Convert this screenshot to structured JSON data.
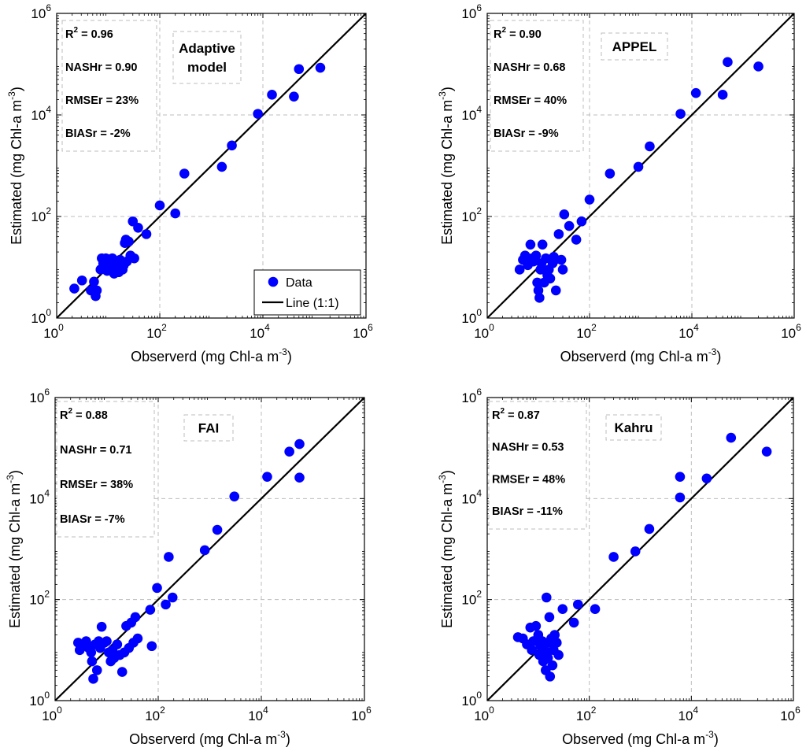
{
  "chart_data": [
    {
      "type": "scatter",
      "title": "Adaptive model",
      "title_lines": [
        "Adaptive",
        "model"
      ],
      "xlabel": "Observerd (mg Chl-a m",
      "ylabel": "Estimated (mg Chl-a m",
      "unit_exponent": "-3",
      "unit_close": ")",
      "axis_scale": "log",
      "xlim": [
        1,
        1000000
      ],
      "ylim": [
        1,
        1000000
      ],
      "tick_base": "10",
      "tick_exponents": [
        "0",
        "2",
        "4",
        "6"
      ],
      "grid": "dashed",
      "stats": [
        {
          "label": "R",
          "sup": "2",
          "value": " = 0.96"
        },
        {
          "label": "NASHr = 0.90"
        },
        {
          "label": "RMSEr = 23%"
        },
        {
          "label": "BIASr = -2%"
        }
      ],
      "legend": {
        "position": "bottom-right",
        "entries": [
          "Data",
          "Line (1:1)"
        ]
      },
      "series": [
        {
          "name": "Data",
          "color": "#0000ff",
          "points": [
            [
              2.2,
              3.8
            ],
            [
              3.1,
              5.5
            ],
            [
              4.6,
              3.5
            ],
            [
              5.3,
              5.2
            ],
            [
              5.7,
              2.7
            ],
            [
              6.0,
              3.5
            ],
            [
              7.1,
              9.0
            ],
            [
              7.5,
              15
            ],
            [
              8.0,
              12
            ],
            [
              8.5,
              11
            ],
            [
              9.0,
              15
            ],
            [
              9.5,
              8.5
            ],
            [
              10,
              14
            ],
            [
              10.5,
              10
            ],
            [
              11,
              12
            ],
            [
              12,
              15
            ],
            [
              13,
              7.5
            ],
            [
              14,
              10
            ],
            [
              15,
              12
            ],
            [
              16,
              8
            ],
            [
              17,
              14
            ],
            [
              18,
              12
            ],
            [
              19,
              9
            ],
            [
              20,
              11
            ],
            [
              21,
              30
            ],
            [
              22,
              35
            ],
            [
              23,
              13
            ],
            [
              25,
              32
            ],
            [
              27,
              17
            ],
            [
              30,
              80
            ],
            [
              32,
              15
            ],
            [
              38,
              60
            ],
            [
              55,
              45
            ],
            [
              100,
              165
            ],
            [
              200,
              115
            ],
            [
              300,
              700
            ],
            [
              1600,
              950
            ],
            [
              2500,
              2500
            ],
            [
              8000,
              10500
            ],
            [
              15000,
              25000
            ],
            [
              40000,
              23000
            ],
            [
              50000,
              80000
            ],
            [
              130000,
              85000
            ]
          ]
        },
        {
          "name": "Line (1:1)",
          "color": "#000000",
          "line": [
            [
              1,
              1
            ],
            [
              1000000,
              1000000
            ]
          ]
        }
      ]
    },
    {
      "type": "scatter",
      "title": "APPEL",
      "title_lines": [
        "APPEL"
      ],
      "xlabel": "Observerd (mg Chl-a m",
      "ylabel": "Estimated (mg Chl-a m",
      "unit_exponent": "-3",
      "unit_close": ")",
      "axis_scale": "log",
      "xlim": [
        1,
        1000000
      ],
      "ylim": [
        1,
        1000000
      ],
      "tick_base": "10",
      "tick_exponents": [
        "0",
        "2",
        "4",
        "6"
      ],
      "grid": "dashed",
      "stats": [
        {
          "label": "R",
          "sup": "2",
          "value": " = 0.90"
        },
        {
          "label": "NASHr = 0.68"
        },
        {
          "label": "RMSEr = 40%"
        },
        {
          "label": "BIASr = -9%"
        }
      ],
      "series": [
        {
          "name": "Data",
          "color": "#0000ff",
          "points": [
            [
              4.3,
              9
            ],
            [
              5,
              14
            ],
            [
              5.5,
              17
            ],
            [
              6.2,
              11
            ],
            [
              7,
              28
            ],
            [
              7.5,
              15
            ],
            [
              8,
              13
            ],
            [
              9,
              17
            ],
            [
              9.5,
              5
            ],
            [
              10,
              3.5
            ],
            [
              10.5,
              2.5
            ],
            [
              11,
              9
            ],
            [
              11.5,
              12
            ],
            [
              12,
              28
            ],
            [
              13,
              5
            ],
            [
              14,
              15
            ],
            [
              15,
              7
            ],
            [
              16,
              9
            ],
            [
              17,
              6
            ],
            [
              19,
              12
            ],
            [
              20,
              16
            ],
            [
              21,
              14
            ],
            [
              22,
              3.5
            ],
            [
              25,
              45
            ],
            [
              28,
              14
            ],
            [
              30,
              9
            ],
            [
              32,
              110
            ],
            [
              40,
              65
            ],
            [
              55,
              35
            ],
            [
              70,
              80
            ],
            [
              100,
              215
            ],
            [
              250,
              700
            ],
            [
              900,
              950
            ],
            [
              1500,
              2400
            ],
            [
              6000,
              10500
            ],
            [
              12000,
              27000
            ],
            [
              40000,
              25000
            ],
            [
              50000,
              110000
            ],
            [
              200000,
              90000
            ]
          ]
        },
        {
          "name": "Line (1:1)",
          "color": "#000000",
          "line": [
            [
              1,
              1
            ],
            [
              1000000,
              1000000
            ]
          ]
        }
      ]
    },
    {
      "type": "scatter",
      "title": "FAI",
      "title_lines": [
        "FAI"
      ],
      "xlabel": "Observerd (mg Chl-a m",
      "ylabel": "Estimated (mg Chl-a m",
      "unit_exponent": "-3",
      "unit_close": ")",
      "axis_scale": "log",
      "xlim": [
        1,
        1000000
      ],
      "ylim": [
        1,
        1000000
      ],
      "tick_base": "10",
      "tick_exponents": [
        "0",
        "2",
        "4",
        "6"
      ],
      "grid": "dashed",
      "stats": [
        {
          "label": "R",
          "sup": "2",
          "value": " = 0.88"
        },
        {
          "label": "NASHr = 0.71"
        },
        {
          "label": "RMSEr = 38%"
        },
        {
          "label": "BIASr = -7%"
        }
      ],
      "series": [
        {
          "name": "Data",
          "color": "#0000ff",
          "points": [
            [
              2.8,
              14
            ],
            [
              3,
              10
            ],
            [
              3.5,
              12
            ],
            [
              4,
              15
            ],
            [
              4.5,
              11
            ],
            [
              5,
              9
            ],
            [
              5.2,
              6
            ],
            [
              5.5,
              2.7
            ],
            [
              6,
              13
            ],
            [
              6.5,
              4
            ],
            [
              7,
              15
            ],
            [
              7.5,
              11
            ],
            [
              8,
              29
            ],
            [
              9,
              14
            ],
            [
              10,
              15
            ],
            [
              11,
              9
            ],
            [
              12,
              6
            ],
            [
              13,
              10
            ],
            [
              14,
              7
            ],
            [
              16,
              13
            ],
            [
              18,
              8
            ],
            [
              20,
              3.7
            ],
            [
              22,
              9
            ],
            [
              24,
              30
            ],
            [
              27,
              11
            ],
            [
              30,
              35
            ],
            [
              33,
              14
            ],
            [
              36,
              45
            ],
            [
              40,
              17
            ],
            [
              70,
              63
            ],
            [
              75,
              12
            ],
            [
              95,
              170
            ],
            [
              140,
              80
            ],
            [
              160,
              700
            ],
            [
              190,
              110
            ],
            [
              800,
              950
            ],
            [
              1400,
              2400
            ],
            [
              3000,
              11000
            ],
            [
              13000,
              27000
            ],
            [
              35000,
              85000
            ],
            [
              55000,
              26000
            ],
            [
              55000,
              120000
            ]
          ]
        },
        {
          "name": "Line (1:1)",
          "color": "#000000",
          "line": [
            [
              1,
              1
            ],
            [
              1000000,
              1000000
            ]
          ]
        }
      ]
    },
    {
      "type": "scatter",
      "title": "Kahru",
      "title_lines": [
        "Kahru"
      ],
      "xlabel": "Observed (mg Chl-a m",
      "ylabel": "Estimated (mg Chl-a m",
      "unit_exponent": "-3",
      "unit_close": ")",
      "axis_scale": "log",
      "xlim": [
        1,
        1000000
      ],
      "ylim": [
        1,
        1000000
      ],
      "tick_base": "10",
      "tick_exponents": [
        "0",
        "2",
        "4",
        "6"
      ],
      "grid": "dashed",
      "stats": [
        {
          "label": "R",
          "sup": "2",
          "value": " = 0.87"
        },
        {
          "label": "NASHr = 0.53"
        },
        {
          "label": "RMSEr = 48%"
        },
        {
          "label": "BIASr = -11%"
        }
      ],
      "series": [
        {
          "name": "Data",
          "color": "#0000ff",
          "points": [
            [
              4,
              18
            ],
            [
              5,
              17
            ],
            [
              6,
              13
            ],
            [
              7,
              28
            ],
            [
              7.5,
              10
            ],
            [
              8,
              15
            ],
            [
              9,
              30
            ],
            [
              10,
              20
            ],
            [
              10.5,
              8
            ],
            [
              11,
              12
            ],
            [
              12,
              15
            ],
            [
              12.5,
              6
            ],
            [
              13,
              11
            ],
            [
              14,
              4
            ],
            [
              14.5,
              110
            ],
            [
              15,
              9
            ],
            [
              15.5,
              7
            ],
            [
              16,
              14
            ],
            [
              16.5,
              45
            ],
            [
              17,
              3
            ],
            [
              18,
              17
            ],
            [
              19,
              5
            ],
            [
              20,
              10
            ],
            [
              21,
              20
            ],
            [
              23,
              14
            ],
            [
              25,
              8
            ],
            [
              30,
              65
            ],
            [
              50,
              35
            ],
            [
              60,
              80
            ],
            [
              130,
              65
            ],
            [
              300,
              700
            ],
            [
              800,
              900
            ],
            [
              1500,
              2500
            ],
            [
              6000,
              10500
            ],
            [
              6000,
              27000
            ],
            [
              20000,
              25000
            ],
            [
              60000,
              160000
            ],
            [
              300000,
              85000
            ]
          ]
        },
        {
          "name": "Line (1:1)",
          "color": "#000000",
          "line": [
            [
              1,
              1
            ],
            [
              1000000,
              1000000
            ]
          ]
        }
      ]
    }
  ]
}
